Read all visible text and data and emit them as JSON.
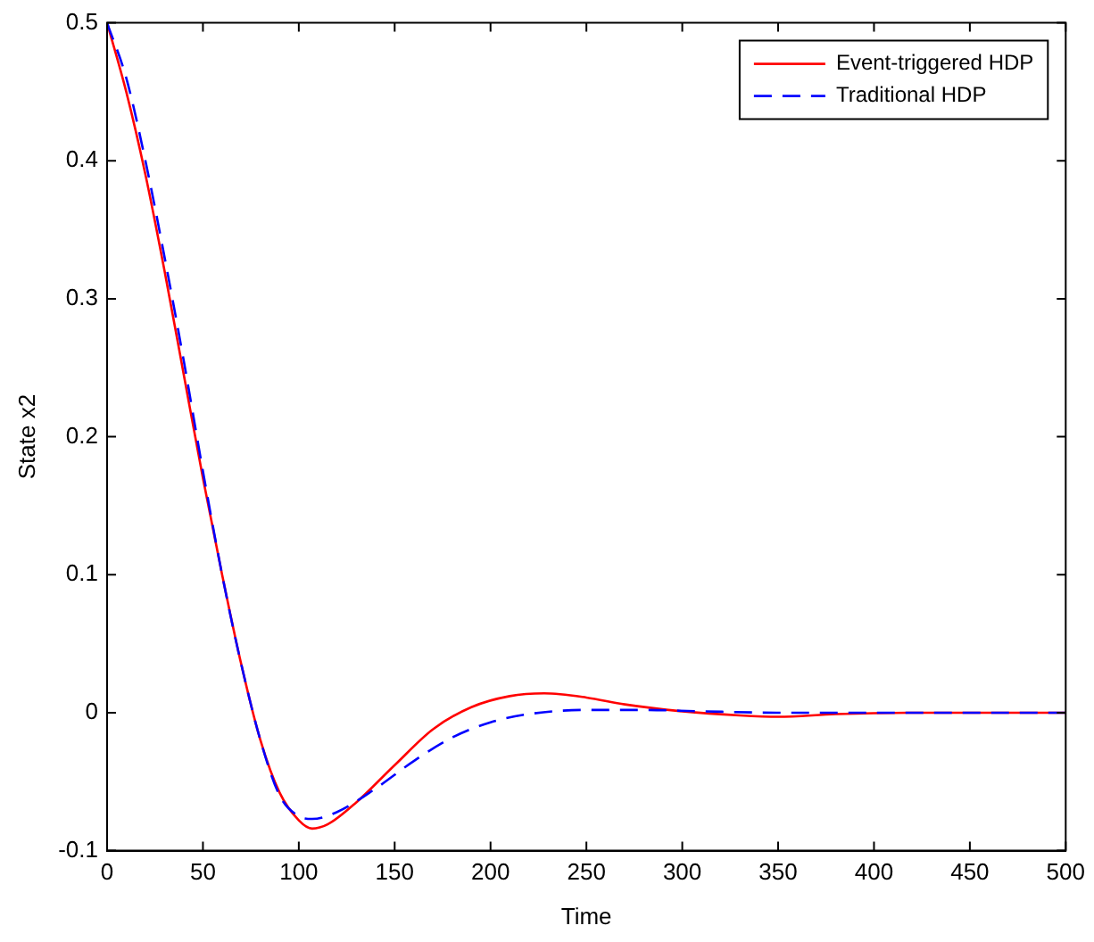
{
  "chart_data": {
    "type": "line",
    "xlabel": "Time",
    "ylabel": "State x2",
    "xlim": [
      0,
      500
    ],
    "xticks": [
      0,
      50,
      100,
      150,
      200,
      250,
      300,
      350,
      400,
      450,
      500
    ],
    "ylim": [
      -0.1,
      0.5
    ],
    "yticks": [
      -0.1,
      0,
      0.1,
      0.2,
      0.3,
      0.4,
      0.5
    ],
    "grid": false,
    "legend": "top right",
    "marker": "none",
    "series": [
      {
        "name": "Event-triggered HDP",
        "color": "#ff0000",
        "line_style": "solid",
        "x": [
          0,
          10,
          20,
          30,
          40,
          50,
          60,
          70,
          80,
          90,
          100,
          107,
          115,
          130,
          150,
          170,
          190,
          210,
          228,
          250,
          270,
          300,
          330,
          350,
          380,
          420,
          500
        ],
        "values": [
          0.5,
          0.45,
          0.39,
          0.32,
          0.245,
          0.17,
          0.1,
          0.035,
          -0.02,
          -0.058,
          -0.078,
          -0.084,
          -0.081,
          -0.065,
          -0.038,
          -0.012,
          0.004,
          0.012,
          0.014,
          0.011,
          0.006,
          0.001,
          -0.002,
          -0.003,
          -0.001,
          0,
          0
        ]
      },
      {
        "name": "Traditional HDP",
        "color": "#0000ff",
        "line_style": "dashed",
        "x": [
          0,
          10,
          20,
          30,
          40,
          50,
          60,
          70,
          80,
          90,
          100,
          107,
          120,
          140,
          160,
          180,
          200,
          220,
          250,
          280,
          310,
          350,
          500
        ],
        "values": [
          0.5,
          0.46,
          0.4,
          0.33,
          0.255,
          0.175,
          0.1,
          0.035,
          -0.02,
          -0.06,
          -0.075,
          -0.077,
          -0.072,
          -0.055,
          -0.035,
          -0.018,
          -0.007,
          -0.001,
          0.002,
          0.002,
          0.001,
          0,
          0
        ]
      }
    ]
  }
}
